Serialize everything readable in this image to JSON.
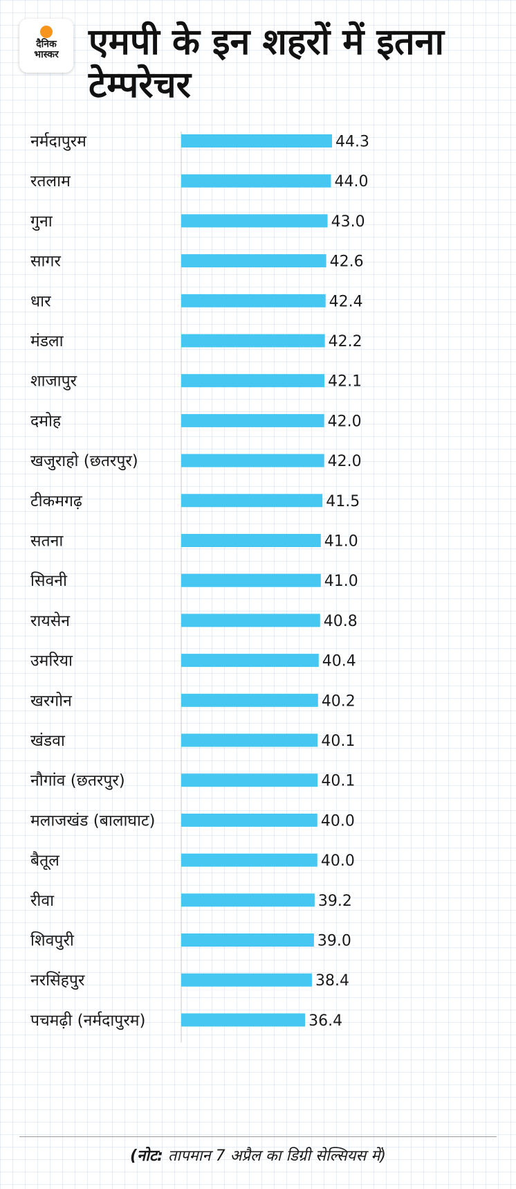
{
  "logo": {
    "line1": "दैनिक",
    "line2": "भास्कर",
    "brand_color": "#f7941d"
  },
  "title": "एमपी के इन शहरों में इतना टेम्परेचर",
  "note": {
    "prefix": "(नोट:",
    "text": " तापमान 7 अप्रैल का डिग्री सेल्सियस में)"
  },
  "colors": {
    "bar": "#45c7f2",
    "axis": "#c8c8c8"
  },
  "chart_data": {
    "type": "bar",
    "orientation": "horizontal",
    "title": "एमपी के इन शहरों में इतना टेम्परेचर",
    "categories": [
      "नर्मदापुरम",
      "रतलाम",
      "गुना",
      "सागर",
      "धार",
      "मंडला",
      "शाजापुर",
      "दमोह",
      "खजुराहो (छतरपुर)",
      "टीकमगढ़",
      "सतना",
      "सिवनी",
      "रायसेन",
      "उमरिया",
      "खरगोन",
      "खंडवा",
      "नौगांव (छतरपुर)",
      "मलाजखंड (बालाघाट)",
      "बैतूल",
      "रीवा",
      "शिवपुरी",
      "नरसिंहपुर",
      "पचमढ़ी (नर्मदापुरम)"
    ],
    "values": [
      44.3,
      44.0,
      43.0,
      42.6,
      42.4,
      42.2,
      42.1,
      42.0,
      42.0,
      41.5,
      41.0,
      41.0,
      40.8,
      40.4,
      40.2,
      40.1,
      40.1,
      40.0,
      40.0,
      39.2,
      39.0,
      38.4,
      36.4
    ],
    "value_labels": [
      "44.3",
      "44.0",
      "43.0",
      "42.6",
      "42.4",
      "42.2",
      "42.1",
      "42.0",
      "42.0",
      "41.5",
      "41.0",
      "41.0",
      "40.8",
      "40.4",
      "40.2",
      "40.1",
      "40.1",
      "40.0",
      "40.0",
      "39.2",
      "39.0",
      "38.4",
      "36.4"
    ],
    "bar_color": "#45c7f2",
    "grid": false,
    "legend": "none"
  }
}
